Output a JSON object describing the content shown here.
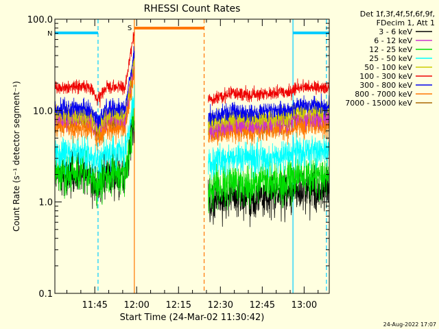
{
  "chart_data": {
    "type": "line",
    "title": "RHESSI Count Rates",
    "xlabel": "Start Time (24-Mar-02 11:30:42)",
    "ylabel": "Count Rate (s⁻¹ detector segment⁻¹)",
    "x_range": [
      "11:30:42",
      "13:09:00"
    ],
    "ylim": [
      0.1,
      100
    ],
    "y_scale": "log",
    "y_ticks": [
      "0.1",
      "1.0",
      "10.0",
      "100.0"
    ],
    "x_ticks": [
      "11:45",
      "12:00",
      "12:15",
      "12:30",
      "12:45",
      "13:00"
    ],
    "grid": false,
    "legend_placement": "right",
    "legend_header": [
      "Det 1f,3f,4f,5f,6f,9f,",
      "FDecim 1, Att 1"
    ],
    "series": [
      {
        "name": "3 - 6 keV",
        "color": "#000000",
        "level_before_gap": 2.0,
        "level_after_gap": 1.2
      },
      {
        "name": "6 - 12 keV",
        "color": "#cc33cc",
        "level_before_gap": 8.5,
        "level_after_gap": 7.5
      },
      {
        "name": "12 - 25 keV",
        "color": "#00dd00",
        "level_before_gap": 2.0,
        "level_after_gap": 1.7
      },
      {
        "name": "25 - 50 keV",
        "color": "#00ffff",
        "level_before_gap": 3.4,
        "level_after_gap": 3.2
      },
      {
        "name": "50 - 100 keV",
        "color": "#cccc00",
        "level_before_gap": 9.0,
        "level_after_gap": 8.8
      },
      {
        "name": "100 - 300 keV",
        "color": "#ee0000",
        "level_before_gap": 18.0,
        "level_after_gap": 16.0
      },
      {
        "name": "300 - 800 keV",
        "color": "#0000ee",
        "level_before_gap": 10.5,
        "level_after_gap": 10.2
      },
      {
        "name": "800 - 7000 keV",
        "color": "#ff7700",
        "level_before_gap": 6.5,
        "level_after_gap": 6.3
      },
      {
        "name": "7000 - 15000 keV",
        "color": "#aa6600",
        "level_before_gap": 7.5,
        "level_after_gap": 7.2
      }
    ],
    "data_intervals": [
      {
        "start": "11:30:42",
        "end": "11:59:10"
      },
      {
        "start": "12:25:40",
        "end": "13:09:00"
      }
    ],
    "annotations": [
      {
        "label": "N",
        "color": "#00ccff",
        "intervals": [
          [
            "11:30:42",
            "11:46:10"
          ],
          [
            "12:56:00",
            "13:09:00"
          ]
        ]
      },
      {
        "label": "S",
        "color": "#ff7700",
        "intervals": [
          [
            "11:59:10",
            "12:24:10"
          ]
        ]
      }
    ],
    "vertical_markers": [
      {
        "time": "11:46:10",
        "color": "#00ccff",
        "style": "dashed"
      },
      {
        "time": "11:59:10",
        "color": "#ff7700",
        "style": "solid"
      },
      {
        "time": "12:24:10",
        "color": "#ff7700",
        "style": "dashed"
      },
      {
        "time": "12:56:00",
        "color": "#00ccff",
        "style": "solid"
      },
      {
        "time": "13:08:00",
        "color": "#00ccff",
        "style": "dashed"
      }
    ],
    "footer_date": "24-Aug-2022 17:07"
  }
}
